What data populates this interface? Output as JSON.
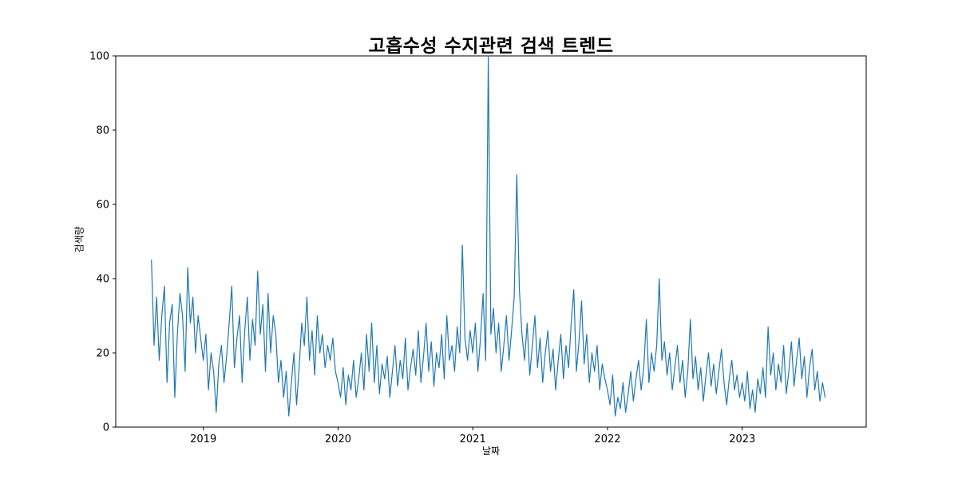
{
  "chart_data": {
    "type": "line",
    "title": "고흡수성 수지관련 검색 트렌드",
    "xlabel": "날짜",
    "ylabel": "검색량",
    "series_name": "검색량",
    "line_color": "#1f77b4",
    "grid": false,
    "legend": "none",
    "xlim": [
      2018.35,
      2023.92
    ],
    "ylim": [
      0,
      100
    ],
    "xticks": [
      2019,
      2020,
      2021,
      2022,
      2023
    ],
    "yticks": [
      0,
      20,
      40,
      60,
      80,
      100
    ],
    "x_start": 2018.615,
    "x_step_years": 0.0192308,
    "values": [
      45,
      22,
      35,
      18,
      30,
      38,
      12,
      28,
      33,
      8,
      25,
      36,
      30,
      15,
      43,
      28,
      35,
      20,
      30,
      24,
      18,
      25,
      10,
      20,
      15,
      4,
      17,
      22,
      12,
      19,
      28,
      38,
      16,
      24,
      30,
      12,
      26,
      35,
      18,
      29,
      22,
      42,
      25,
      33,
      15,
      36,
      20,
      30,
      25,
      12,
      18,
      8,
      15,
      3,
      12,
      20,
      6,
      16,
      28,
      22,
      35,
      18,
      26,
      14,
      30,
      20,
      25,
      16,
      22,
      18,
      24,
      15,
      12,
      8,
      16,
      6,
      14,
      10,
      18,
      8,
      13,
      20,
      10,
      25,
      15,
      28,
      12,
      22,
      9,
      17,
      13,
      19,
      8,
      15,
      22,
      11,
      18,
      13,
      24,
      10,
      16,
      21,
      14,
      26,
      12,
      19,
      28,
      15,
      23,
      11,
      20,
      16,
      25,
      13,
      30,
      18,
      22,
      15,
      27,
      20,
      49,
      24,
      18,
      26,
      20,
      28,
      15,
      24,
      36,
      18,
      100,
      25,
      32,
      20,
      28,
      15,
      22,
      30,
      18,
      26,
      35,
      68,
      37,
      25,
      18,
      28,
      14,
      22,
      30,
      16,
      24,
      12,
      20,
      26,
      15,
      21,
      10,
      18,
      25,
      13,
      22,
      16,
      28,
      37,
      15,
      23,
      34,
      17,
      25,
      12,
      20,
      15,
      22,
      10,
      17,
      13,
      10,
      6,
      14,
      3,
      8,
      5,
      12,
      4,
      9,
      15,
      7,
      13,
      18,
      10,
      16,
      29,
      12,
      20,
      15,
      22,
      40,
      18,
      23,
      14,
      20,
      10,
      16,
      22,
      12,
      18,
      8,
      15,
      29,
      13,
      19,
      10,
      16,
      7,
      14,
      20,
      11,
      17,
      9,
      15,
      21,
      12,
      6,
      13,
      18,
      10,
      14,
      8,
      12,
      7,
      15,
      5,
      10,
      4,
      13,
      9,
      16,
      8,
      27,
      14,
      20,
      10,
      17,
      12,
      22,
      9,
      15,
      23,
      11,
      18,
      24,
      13,
      19,
      8,
      16,
      21,
      10,
      15,
      7,
      12,
      8
    ]
  }
}
